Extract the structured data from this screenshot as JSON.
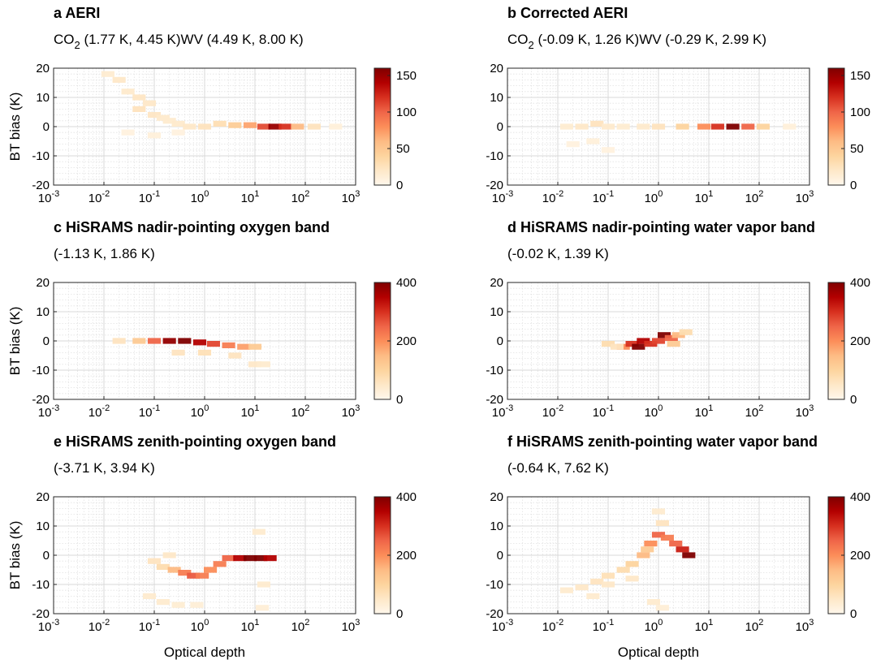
{
  "chart_data": [
    {
      "type": "heatmap",
      "panel": "a",
      "title": "a AERI",
      "subtitle_parts": [
        {
          "text": "CO",
          "sub": "2",
          "rest": " (1.77 K, 4.45 K)"
        },
        {
          "text": "WV (4.49 K, 8.00 K)"
        }
      ],
      "xlabel": "",
      "ylabel": "BT bias (K)",
      "xscale": "log",
      "xlim": [
        0.001,
        1000
      ],
      "ylim": [
        -20,
        20
      ],
      "x_ticks": [
        "-3",
        "-2",
        "-1",
        "0",
        "1",
        "2",
        "3"
      ],
      "y_ticks": [
        "20",
        "10",
        "0",
        "-10",
        "-20"
      ],
      "colorbar": {
        "min": 0,
        "max": 160,
        "ticks": [
          "150",
          "100",
          "50",
          "0"
        ],
        "tick_values": [
          150,
          100,
          50,
          0
        ]
      },
      "cells": [
        {
          "x": 0.012,
          "y": 18,
          "v": 15
        },
        {
          "x": 0.02,
          "y": 16,
          "v": 20
        },
        {
          "x": 0.03,
          "y": 12,
          "v": 18
        },
        {
          "x": 0.05,
          "y": 10,
          "v": 22
        },
        {
          "x": 0.05,
          "y": 6,
          "v": 25
        },
        {
          "x": 0.08,
          "y": 8,
          "v": 20
        },
        {
          "x": 0.1,
          "y": 4,
          "v": 22
        },
        {
          "x": 0.15,
          "y": 3,
          "v": 18
        },
        {
          "x": 0.2,
          "y": 2,
          "v": 16
        },
        {
          "x": 0.3,
          "y": 1,
          "v": 18
        },
        {
          "x": 0.5,
          "y": 0,
          "v": 20
        },
        {
          "x": 1,
          "y": 0,
          "v": 25
        },
        {
          "x": 2,
          "y": 1,
          "v": 30
        },
        {
          "x": 4,
          "y": 0.5,
          "v": 45
        },
        {
          "x": 8,
          "y": 0.5,
          "v": 70
        },
        {
          "x": 15,
          "y": 0,
          "v": 110
        },
        {
          "x": 25,
          "y": 0,
          "v": 150
        },
        {
          "x": 40,
          "y": 0,
          "v": 120
        },
        {
          "x": 70,
          "y": 0,
          "v": 60
        },
        {
          "x": 150,
          "y": 0,
          "v": 25
        },
        {
          "x": 400,
          "y": 0,
          "v": 10
        },
        {
          "x": 0.03,
          "y": -2,
          "v": 8
        },
        {
          "x": 0.1,
          "y": -3,
          "v": 10
        },
        {
          "x": 0.3,
          "y": -2,
          "v": 8
        }
      ]
    },
    {
      "type": "heatmap",
      "panel": "b",
      "title": "b Corrected AERI",
      "subtitle_parts": [
        {
          "text": "CO",
          "sub": "2",
          "rest": " (-0.09 K, 1.26 K)"
        },
        {
          "text": "WV (-0.29 K, 2.99 K)"
        }
      ],
      "xlabel": "",
      "ylabel": "",
      "xscale": "log",
      "xlim": [
        0.001,
        1000
      ],
      "ylim": [
        -20,
        20
      ],
      "x_ticks": [
        "-3",
        "-2",
        "-1",
        "0",
        "1",
        "2",
        "3"
      ],
      "y_ticks": [
        "20",
        "10",
        "0",
        "-10",
        "-20"
      ],
      "colorbar": {
        "min": 0,
        "max": 160,
        "ticks": [
          "150",
          "100",
          "50",
          "0"
        ],
        "tick_values": [
          150,
          100,
          50,
          0
        ]
      },
      "cells": [
        {
          "x": 0.015,
          "y": 0,
          "v": 15
        },
        {
          "x": 0.03,
          "y": 0,
          "v": 20
        },
        {
          "x": 0.06,
          "y": 1,
          "v": 25
        },
        {
          "x": 0.1,
          "y": 0,
          "v": 18
        },
        {
          "x": 0.2,
          "y": 0,
          "v": 15
        },
        {
          "x": 0.5,
          "y": 0,
          "v": 18
        },
        {
          "x": 1,
          "y": 0,
          "v": 25
        },
        {
          "x": 3,
          "y": 0,
          "v": 40
        },
        {
          "x": 8,
          "y": 0,
          "v": 80
        },
        {
          "x": 15,
          "y": 0,
          "v": 120
        },
        {
          "x": 30,
          "y": 0,
          "v": 160
        },
        {
          "x": 60,
          "y": 0,
          "v": 100
        },
        {
          "x": 120,
          "y": 0,
          "v": 40
        },
        {
          "x": 400,
          "y": 0,
          "v": 10
        },
        {
          "x": 0.02,
          "y": -6,
          "v": 8
        },
        {
          "x": 0.05,
          "y": -5,
          "v": 10
        },
        {
          "x": 0.1,
          "y": -8,
          "v": 8
        }
      ]
    },
    {
      "type": "heatmap",
      "panel": "c",
      "title": "c HiSRAMS nadir-pointing oxygen band",
      "subtitle_parts": [
        {
          "text": "(-1.13 K, 1.86 K)"
        }
      ],
      "xlabel": "",
      "ylabel": "BT bias (K)",
      "xscale": "log",
      "xlim": [
        0.001,
        1000
      ],
      "ylim": [
        -20,
        20
      ],
      "x_ticks": [
        "-3",
        "-2",
        "-1",
        "0",
        "1",
        "2",
        "3"
      ],
      "y_ticks": [
        "20",
        "10",
        "0",
        "-10",
        "-20"
      ],
      "colorbar": {
        "min": 0,
        "max": 400,
        "ticks": [
          "400",
          "200",
          "0"
        ],
        "tick_values": [
          400,
          200,
          0
        ]
      },
      "cells": [
        {
          "x": 0.02,
          "y": 0,
          "v": 60
        },
        {
          "x": 0.05,
          "y": 0,
          "v": 120
        },
        {
          "x": 0.1,
          "y": 0,
          "v": 250
        },
        {
          "x": 0.2,
          "y": 0,
          "v": 380
        },
        {
          "x": 0.4,
          "y": 0,
          "v": 400
        },
        {
          "x": 0.8,
          "y": -0.5,
          "v": 350
        },
        {
          "x": 1.5,
          "y": -1,
          "v": 280
        },
        {
          "x": 3,
          "y": -1.5,
          "v": 220
        },
        {
          "x": 6,
          "y": -2,
          "v": 180
        },
        {
          "x": 10,
          "y": -2,
          "v": 120
        },
        {
          "x": 0.3,
          "y": -4,
          "v": 60
        },
        {
          "x": 1,
          "y": -4,
          "v": 70
        },
        {
          "x": 4,
          "y": -5,
          "v": 60
        },
        {
          "x": 10,
          "y": -8,
          "v": 50
        },
        {
          "x": 15,
          "y": -8,
          "v": 40
        }
      ]
    },
    {
      "type": "heatmap",
      "panel": "d",
      "title": "d HiSRAMS nadir-pointing water vapor band",
      "subtitle_parts": [
        {
          "text": "(-0.02 K, 1.39 K)"
        }
      ],
      "xlabel": "",
      "ylabel": "",
      "xscale": "log",
      "xlim": [
        0.001,
        1000
      ],
      "ylim": [
        -20,
        20
      ],
      "x_ticks": [
        "-3",
        "-2",
        "-1",
        "0",
        "1",
        "2",
        "3"
      ],
      "y_ticks": [
        "20",
        "10",
        "0",
        "-10",
        "-20"
      ],
      "colorbar": {
        "min": 0,
        "max": 400,
        "ticks": [
          "400",
          "200",
          "0"
        ],
        "tick_values": [
          400,
          200,
          0
        ]
      },
      "cells": [
        {
          "x": 0.1,
          "y": -1,
          "v": 80
        },
        {
          "x": 0.2,
          "y": -2,
          "v": 200
        },
        {
          "x": 0.3,
          "y": -1,
          "v": 300
        },
        {
          "x": 0.4,
          "y": -2,
          "v": 400
        },
        {
          "x": 0.5,
          "y": 0,
          "v": 350
        },
        {
          "x": 0.7,
          "y": -1,
          "v": 300
        },
        {
          "x": 1,
          "y": 0,
          "v": 280
        },
        {
          "x": 1.3,
          "y": 2,
          "v": 400
        },
        {
          "x": 1.8,
          "y": 1,
          "v": 250
        },
        {
          "x": 2.5,
          "y": 2,
          "v": 150
        },
        {
          "x": 3.5,
          "y": 3,
          "v": 80
        },
        {
          "x": 0.15,
          "y": -2,
          "v": 60
        },
        {
          "x": 2,
          "y": -1,
          "v": 120
        }
      ]
    },
    {
      "type": "heatmap",
      "panel": "e",
      "title": "e HiSRAMS zenith-pointing oxygen band",
      "subtitle_parts": [
        {
          "text": "(-3.71 K, 3.94 K)"
        }
      ],
      "xlabel": "Optical depth",
      "ylabel": "BT bias (K)",
      "xscale": "log",
      "xlim": [
        0.001,
        1000
      ],
      "ylim": [
        -20,
        20
      ],
      "x_ticks": [
        "-3",
        "-2",
        "-1",
        "0",
        "1",
        "2",
        "3"
      ],
      "y_ticks": [
        "20",
        "10",
        "0",
        "-10",
        "-20"
      ],
      "colorbar": {
        "min": 0,
        "max": 400,
        "ticks": [
          "400",
          "200",
          "0"
        ],
        "tick_values": [
          400,
          200,
          0
        ]
      },
      "cells": [
        {
          "x": 0.08,
          "y": -14,
          "v": 40
        },
        {
          "x": 0.15,
          "y": -16,
          "v": 40
        },
        {
          "x": 0.3,
          "y": -17,
          "v": 35
        },
        {
          "x": 0.7,
          "y": -17,
          "v": 30
        },
        {
          "x": 0.1,
          "y": -2,
          "v": 60
        },
        {
          "x": 0.15,
          "y": -4,
          "v": 80
        },
        {
          "x": 0.25,
          "y": -5,
          "v": 150
        },
        {
          "x": 0.4,
          "y": -6,
          "v": 220
        },
        {
          "x": 0.6,
          "y": -7,
          "v": 260
        },
        {
          "x": 0.9,
          "y": -7,
          "v": 220
        },
        {
          "x": 1.3,
          "y": -5,
          "v": 200
        },
        {
          "x": 2,
          "y": -3,
          "v": 220
        },
        {
          "x": 3,
          "y": -1,
          "v": 250
        },
        {
          "x": 5,
          "y": -1,
          "v": 350
        },
        {
          "x": 8,
          "y": -1,
          "v": 400
        },
        {
          "x": 13,
          "y": -1,
          "v": 400
        },
        {
          "x": 20,
          "y": -1,
          "v": 350
        },
        {
          "x": 12,
          "y": 8,
          "v": 40
        },
        {
          "x": 15,
          "y": -10,
          "v": 40
        },
        {
          "x": 14,
          "y": -18,
          "v": 30
        },
        {
          "x": 0.2,
          "y": 0,
          "v": 50
        }
      ]
    },
    {
      "type": "heatmap",
      "panel": "f",
      "title": "f HiSRAMS zenith-pointing water vapor band",
      "subtitle_parts": [
        {
          "text": "(-0.64 K, 7.62 K)"
        }
      ],
      "xlabel": "Optical depth",
      "ylabel": "",
      "xscale": "log",
      "xlim": [
        0.001,
        1000
      ],
      "ylim": [
        -20,
        20
      ],
      "x_ticks": [
        "-3",
        "-2",
        "-1",
        "0",
        "1",
        "2",
        "3"
      ],
      "y_ticks": [
        "20",
        "10",
        "0",
        "-10",
        "-20"
      ],
      "colorbar": {
        "min": 0,
        "max": 400,
        "ticks": [
          "400",
          "200",
          "0"
        ],
        "tick_values": [
          400,
          200,
          0
        ]
      },
      "cells": [
        {
          "x": 0.015,
          "y": -12,
          "v": 40
        },
        {
          "x": 0.03,
          "y": -11,
          "v": 50
        },
        {
          "x": 0.06,
          "y": -9,
          "v": 60
        },
        {
          "x": 0.1,
          "y": -7,
          "v": 70
        },
        {
          "x": 0.2,
          "y": -5,
          "v": 80
        },
        {
          "x": 0.3,
          "y": -3,
          "v": 100
        },
        {
          "x": 0.5,
          "y": 0,
          "v": 150
        },
        {
          "x": 0.7,
          "y": 4,
          "v": 200
        },
        {
          "x": 1,
          "y": 7,
          "v": 250
        },
        {
          "x": 1.5,
          "y": 6,
          "v": 220
        },
        {
          "x": 2.2,
          "y": 4,
          "v": 250
        },
        {
          "x": 3,
          "y": 2,
          "v": 320
        },
        {
          "x": 4,
          "y": 0,
          "v": 400
        },
        {
          "x": 0.05,
          "y": -14,
          "v": 40
        },
        {
          "x": 0.1,
          "y": -10,
          "v": 50
        },
        {
          "x": 0.3,
          "y": -8,
          "v": 50
        },
        {
          "x": 0.8,
          "y": -16,
          "v": 40
        },
        {
          "x": 1.2,
          "y": -18,
          "v": 30
        },
        {
          "x": 1,
          "y": 15,
          "v": 40
        },
        {
          "x": 1.2,
          "y": 11,
          "v": 60
        },
        {
          "x": 0.6,
          "y": 2,
          "v": 120
        }
      ]
    }
  ],
  "colors": {
    "grid": "#d9d9d9",
    "cmap": [
      "#fff7ec",
      "#fee8c8",
      "#fdd49e",
      "#fdbb84",
      "#fc8d59",
      "#ef6548",
      "#d7301f",
      "#b30000",
      "#7f0000"
    ]
  }
}
